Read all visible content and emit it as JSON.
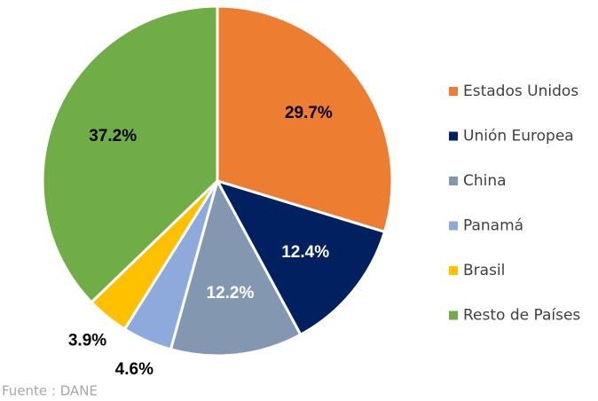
{
  "chart_data": {
    "type": "pie",
    "categories": [
      "Estados Unidos",
      "Unión Europea",
      "China",
      "Panamá",
      "Brasil",
      "Resto de Países"
    ],
    "values": [
      29.7,
      12.4,
      12.2,
      4.6,
      3.9,
      37.2
    ],
    "value_labels": [
      "29.7%",
      "12.4%",
      "12.2%",
      "4.6%",
      "3.9%",
      "37.2%"
    ],
    "colors": [
      "#ED7D31",
      "#002060",
      "#8497B0",
      "#8EA9DB",
      "#FFC000",
      "#70AD47"
    ],
    "legend": "right",
    "source": "Fuente : DANE"
  }
}
